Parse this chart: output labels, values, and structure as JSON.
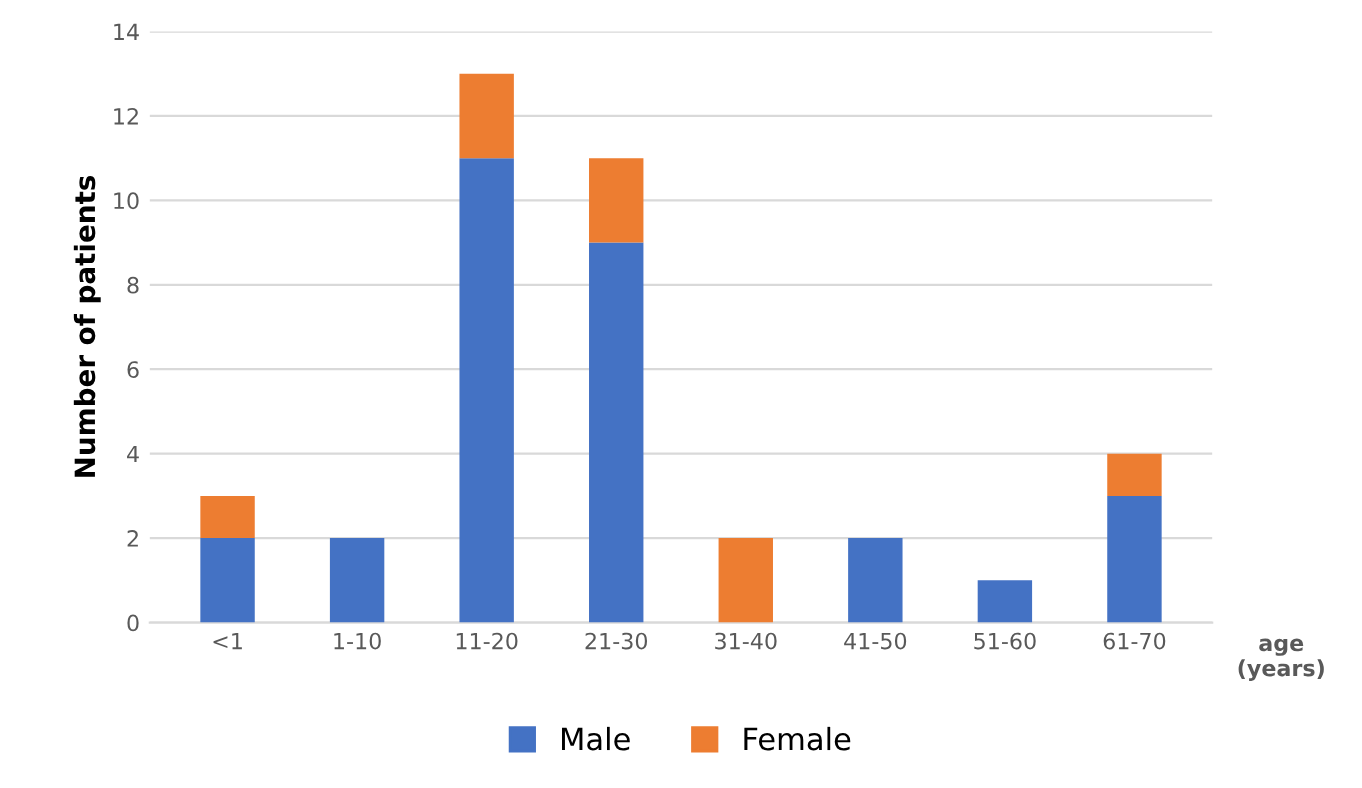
{
  "chart_data": {
    "type": "bar",
    "stacked": true,
    "ylabel": "Number of patients",
    "xlabel": "age\n(years)",
    "categories": [
      "<1",
      "1-10",
      "11-20",
      "21-30",
      "31-40",
      "41-50",
      "51-60",
      "61-70"
    ],
    "series": [
      {
        "name": "Male",
        "color": "#4472c4",
        "values": [
          2,
          2,
          11,
          9,
          0,
          2,
          1,
          3
        ]
      },
      {
        "name": "Female",
        "color": "#ed7d31",
        "values": [
          1,
          0,
          2,
          2,
          2,
          0,
          0,
          1
        ]
      }
    ],
    "ylim": [
      0,
      14
    ],
    "yticks": [
      0,
      2,
      4,
      6,
      8,
      10,
      12,
      14
    ],
    "grid": "y",
    "legend": "bottom"
  }
}
